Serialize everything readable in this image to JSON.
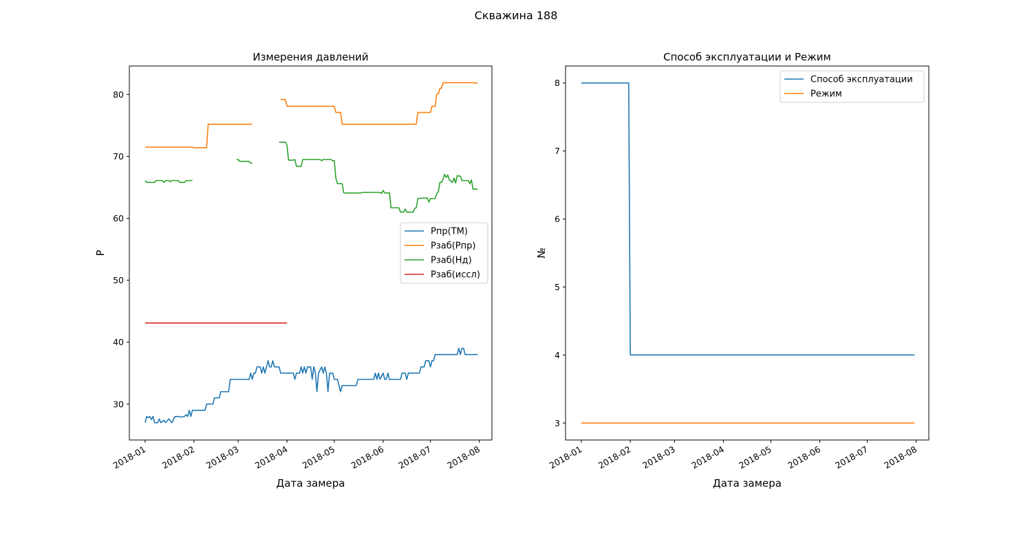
{
  "figure": {
    "suptitle": "Скважина 188"
  },
  "colors": {
    "blue": "#1f77b4",
    "orange": "#ff7f0e",
    "green": "#2ca02c",
    "red": "#d62728"
  },
  "chart_data": [
    {
      "type": "line",
      "title": "Измерения давлений",
      "xlabel": "Дата замера",
      "ylabel": "P",
      "xlim": [
        "2017-12-22",
        "2018-08-09"
      ],
      "ylim": [
        24.2,
        84.6
      ],
      "xticks": [
        "2018-01-01",
        "2018-02-01",
        "2018-03-01",
        "2018-04-01",
        "2018-05-01",
        "2018-06-01",
        "2018-07-01",
        "2018-08-01"
      ],
      "xtick_labels": [
        "2018-01",
        "2018-02",
        "2018-03",
        "2018-04",
        "2018-05",
        "2018-06",
        "2018-07",
        "2018-08"
      ],
      "yticks": [
        30,
        40,
        50,
        60,
        70,
        80
      ],
      "ytick_labels": [
        "30",
        "40",
        "50",
        "60",
        "70",
        "80"
      ],
      "legend": "center-right",
      "grid": false,
      "series": [
        {
          "name": "Pпр(ТМ)",
          "color": "#1f77b4",
          "points": [
            [
              "2018-01-01",
              27
            ],
            [
              "2018-01-02",
              28
            ],
            [
              "2018-01-03",
              27.8
            ],
            [
              "2018-01-04",
              28
            ],
            [
              "2018-01-05",
              27.5
            ],
            [
              "2018-01-06",
              28
            ],
            [
              "2018-01-07",
              27
            ],
            [
              "2018-01-09",
              27
            ],
            [
              "2018-01-10",
              27.6
            ],
            [
              "2018-01-11",
              27
            ],
            [
              "2018-01-13",
              27.4
            ],
            [
              "2018-01-14",
              27
            ],
            [
              "2018-01-16",
              27.6
            ],
            [
              "2018-01-17",
              27.3
            ],
            [
              "2018-01-18",
              27
            ],
            [
              "2018-01-20",
              28
            ],
            [
              "2018-01-22",
              28
            ],
            [
              "2018-01-24",
              27.9
            ],
            [
              "2018-01-26",
              28
            ],
            [
              "2018-01-27",
              28.3
            ],
            [
              "2018-01-28",
              28
            ],
            [
              "2018-01-29",
              29
            ],
            [
              "2018-01-30",
              28
            ],
            [
              "2018-01-31",
              29
            ],
            [
              "2018-02-01",
              29
            ],
            [
              "2018-02-08",
              29
            ],
            [
              "2018-02-09",
              30
            ],
            [
              "2018-02-13",
              30
            ],
            [
              "2018-02-14",
              31
            ],
            [
              "2018-02-17",
              31
            ],
            [
              "2018-02-18",
              32
            ],
            [
              "2018-02-23",
              32
            ],
            [
              "2018-02-24",
              34
            ],
            [
              "2018-03-08",
              34
            ],
            [
              "2018-03-09",
              35
            ],
            [
              "2018-03-10",
              34
            ],
            [
              "2018-03-11",
              35
            ],
            [
              "2018-03-12",
              35
            ],
            [
              "2018-03-13",
              36
            ],
            [
              "2018-03-15",
              36
            ],
            [
              "2018-03-16",
              35
            ],
            [
              "2018-03-17",
              36
            ],
            [
              "2018-03-18",
              35
            ],
            [
              "2018-03-19",
              36
            ],
            [
              "2018-03-20",
              37
            ],
            [
              "2018-03-21",
              36
            ],
            [
              "2018-03-22",
              36
            ],
            [
              "2018-03-23",
              37
            ],
            [
              "2018-03-24",
              36
            ],
            [
              "2018-03-27",
              36
            ],
            [
              "2018-03-28",
              35
            ],
            [
              "2018-04-05",
              35
            ],
            [
              "2018-04-06",
              34
            ],
            [
              "2018-04-07",
              35
            ],
            [
              "2018-04-09",
              35
            ],
            [
              "2018-04-10",
              36
            ],
            [
              "2018-04-11",
              35
            ],
            [
              "2018-04-12",
              36
            ],
            [
              "2018-04-13",
              35
            ],
            [
              "2018-04-14",
              36
            ],
            [
              "2018-04-16",
              36
            ],
            [
              "2018-04-17",
              34
            ],
            [
              "2018-04-18",
              36
            ],
            [
              "2018-04-19",
              35
            ],
            [
              "2018-04-20",
              32
            ],
            [
              "2018-04-21",
              35
            ],
            [
              "2018-04-22",
              35.5
            ],
            [
              "2018-04-23",
              36
            ],
            [
              "2018-04-24",
              35
            ],
            [
              "2018-04-25",
              36
            ],
            [
              "2018-04-26",
              35
            ],
            [
              "2018-04-27",
              32
            ],
            [
              "2018-04-28",
              35
            ],
            [
              "2018-04-30",
              35
            ],
            [
              "2018-05-01",
              34
            ],
            [
              "2018-05-03",
              34
            ],
            [
              "2018-05-04",
              33
            ],
            [
              "2018-05-05",
              32
            ],
            [
              "2018-05-06",
              33
            ],
            [
              "2018-05-15",
              33
            ],
            [
              "2018-05-16",
              34
            ],
            [
              "2018-05-26",
              34
            ],
            [
              "2018-05-27",
              35
            ],
            [
              "2018-05-28",
              34
            ],
            [
              "2018-05-29",
              35
            ],
            [
              "2018-05-30",
              34
            ],
            [
              "2018-06-01",
              35
            ],
            [
              "2018-06-02",
              34
            ],
            [
              "2018-06-03",
              34
            ],
            [
              "2018-06-04",
              35
            ],
            [
              "2018-06-05",
              34
            ],
            [
              "2018-06-12",
              34
            ],
            [
              "2018-06-13",
              35
            ],
            [
              "2018-06-15",
              35
            ],
            [
              "2018-06-16",
              34
            ],
            [
              "2018-06-17",
              35
            ],
            [
              "2018-06-24",
              35
            ],
            [
              "2018-06-25",
              36
            ],
            [
              "2018-06-27",
              36
            ],
            [
              "2018-06-28",
              37
            ],
            [
              "2018-06-30",
              37
            ],
            [
              "2018-07-01",
              36
            ],
            [
              "2018-07-02",
              37
            ],
            [
              "2018-07-03",
              37
            ],
            [
              "2018-07-04",
              38
            ],
            [
              "2018-07-18",
              38
            ],
            [
              "2018-07-19",
              39
            ],
            [
              "2018-07-20",
              38
            ],
            [
              "2018-07-21",
              39
            ],
            [
              "2018-07-22",
              39
            ],
            [
              "2018-07-23",
              38
            ],
            [
              "2018-07-31",
              38
            ]
          ]
        },
        {
          "name": "Pзаб(Pпр)",
          "color": "#ff7f0e",
          "points": [
            [
              "2018-01-01",
              71.5
            ],
            [
              "2018-01-31",
              71.5
            ],
            [
              "2018-02-01",
              71.4
            ],
            [
              "2018-02-09",
              71.4
            ],
            [
              "2018-02-10",
              75.2
            ],
            [
              "2018-03-10",
              75.2
            ],
            null,
            [
              "2018-03-28",
              79.2
            ],
            [
              "2018-03-31",
              79.2
            ],
            [
              "2018-04-01",
              78.1
            ],
            [
              "2018-05-01",
              78.1
            ],
            [
              "2018-05-02",
              77.1
            ],
            [
              "2018-05-05",
              77.1
            ],
            [
              "2018-05-06",
              75.2
            ],
            [
              "2018-06-22",
              75.2
            ],
            [
              "2018-06-23",
              77.1
            ],
            [
              "2018-07-01",
              77.1
            ],
            [
              "2018-07-02",
              78.1
            ],
            [
              "2018-07-04",
              78.1
            ],
            [
              "2018-07-05",
              80.1
            ],
            [
              "2018-07-06",
              80.1
            ],
            [
              "2018-07-07",
              81.0
            ],
            [
              "2018-07-08",
              81.0
            ],
            [
              "2018-07-09",
              81.9
            ],
            [
              "2018-07-28",
              81.9
            ],
            [
              "2018-07-31",
              81.8
            ]
          ]
        },
        {
          "name": "Pзаб(Нд)",
          "color": "#2ca02c",
          "points": [
            [
              "2018-01-01",
              66.1
            ],
            [
              "2018-01-02",
              65.8
            ],
            [
              "2018-01-07",
              65.8
            ],
            [
              "2018-01-08",
              66.1
            ],
            [
              "2018-01-12",
              66.1
            ],
            [
              "2018-01-13",
              65.8
            ],
            [
              "2018-01-14",
              66.1
            ],
            [
              "2018-01-16",
              66.1
            ],
            [
              "2018-01-17",
              65.9
            ],
            [
              "2018-01-18",
              66.1
            ],
            [
              "2018-01-22",
              66.1
            ],
            [
              "2018-01-23",
              65.8
            ],
            [
              "2018-01-26",
              65.8
            ],
            [
              "2018-01-27",
              66.1
            ],
            [
              "2018-01-31",
              66.1
            ],
            null,
            [
              "2018-02-28",
              69.5
            ],
            [
              "2018-03-01",
              69.5
            ],
            [
              "2018-03-02",
              69.2
            ],
            [
              "2018-03-08",
              69.2
            ],
            [
              "2018-03-09",
              68.9
            ],
            [
              "2018-03-10",
              68.9
            ],
            null,
            [
              "2018-03-27",
              72.3
            ],
            [
              "2018-03-31",
              72.3
            ],
            [
              "2018-04-01",
              71.8
            ],
            [
              "2018-04-02",
              69.4
            ],
            [
              "2018-04-05",
              69.4
            ],
            [
              "2018-04-06",
              69.5
            ],
            [
              "2018-04-07",
              68.4
            ],
            [
              "2018-04-10",
              68.4
            ],
            [
              "2018-04-11",
              69.5
            ],
            [
              "2018-04-22",
              69.5
            ],
            [
              "2018-04-23",
              69.3
            ],
            [
              "2018-04-24",
              69.5
            ],
            [
              "2018-04-29",
              69.5
            ],
            [
              "2018-04-30",
              69.3
            ],
            [
              "2018-05-01",
              69.3
            ],
            [
              "2018-05-02",
              66.5
            ],
            [
              "2018-05-03",
              65.6
            ],
            [
              "2018-05-06",
              65.6
            ],
            [
              "2018-05-07",
              64.1
            ],
            [
              "2018-05-18",
              64.1
            ],
            [
              "2018-05-19",
              64.2
            ],
            [
              "2018-05-30",
              64.2
            ],
            [
              "2018-05-31",
              64.0
            ],
            [
              "2018-06-01",
              64.5
            ],
            [
              "2018-06-02",
              64.1
            ],
            [
              "2018-06-05",
              64.1
            ],
            [
              "2018-06-06",
              61.7
            ],
            [
              "2018-06-11",
              61.7
            ],
            [
              "2018-06-12",
              61.0
            ],
            [
              "2018-06-14",
              61.0
            ],
            [
              "2018-06-15",
              61.5
            ],
            [
              "2018-06-16",
              61.0
            ],
            [
              "2018-06-20",
              61.0
            ],
            [
              "2018-06-21",
              61.6
            ],
            [
              "2018-06-22",
              61.7
            ],
            [
              "2018-06-23",
              63.2
            ],
            [
              "2018-06-29",
              63.3
            ],
            [
              "2018-06-30",
              62.6
            ],
            [
              "2018-07-01",
              63.2
            ],
            [
              "2018-07-04",
              63.2
            ],
            [
              "2018-07-05",
              64.0
            ],
            [
              "2018-07-06",
              64.3
            ],
            [
              "2018-07-07",
              65.8
            ],
            [
              "2018-07-08",
              65.8
            ],
            [
              "2018-07-09",
              66.3
            ],
            [
              "2018-07-10",
              67.1
            ],
            [
              "2018-07-11",
              66.6
            ],
            [
              "2018-07-12",
              67.0
            ],
            [
              "2018-07-13",
              66.2
            ],
            [
              "2018-07-14",
              66.0
            ],
            [
              "2018-07-15",
              65.8
            ],
            [
              "2018-07-16",
              66.5
            ],
            [
              "2018-07-17",
              65.7
            ],
            [
              "2018-07-18",
              66.9
            ],
            [
              "2018-07-20",
              66.8
            ],
            [
              "2018-07-21",
              66.1
            ],
            [
              "2018-07-25",
              66.1
            ],
            [
              "2018-07-26",
              65.6
            ],
            [
              "2018-07-27",
              66.2
            ],
            [
              "2018-07-28",
              64.7
            ],
            [
              "2018-07-31",
              64.7
            ]
          ]
        },
        {
          "name": "Pзаб(иссл)",
          "color": "#d62728",
          "points": [
            [
              "2018-01-01",
              43.1
            ],
            [
              "2018-04-01",
              43.1
            ]
          ]
        }
      ]
    },
    {
      "type": "line",
      "title": "Способ эксплуатации и Режим",
      "xlabel": "Дата замера",
      "ylabel": "№",
      "xlim": [
        "2017-12-22",
        "2018-08-09"
      ],
      "ylim": [
        2.75,
        8.25
      ],
      "xticks": [
        "2018-01-01",
        "2018-02-01",
        "2018-03-01",
        "2018-04-01",
        "2018-05-01",
        "2018-06-01",
        "2018-07-01",
        "2018-08-01"
      ],
      "xtick_labels": [
        "2018-01",
        "2018-02",
        "2018-03",
        "2018-04",
        "2018-05",
        "2018-06",
        "2018-07",
        "2018-08"
      ],
      "yticks": [
        3,
        4,
        5,
        6,
        7,
        8
      ],
      "ytick_labels": [
        "3",
        "4",
        "5",
        "6",
        "7",
        "8"
      ],
      "legend": "upper-right",
      "grid": false,
      "series": [
        {
          "name": "Способ эксплуатации",
          "color": "#1f77b4",
          "points": [
            [
              "2018-01-01",
              8
            ],
            [
              "2018-01-31",
              8
            ],
            [
              "2018-02-01",
              4
            ],
            [
              "2018-07-31",
              4
            ]
          ]
        },
        {
          "name": "Режим",
          "color": "#ff7f0e",
          "points": [
            [
              "2018-01-01",
              3
            ],
            [
              "2018-07-31",
              3
            ]
          ]
        }
      ]
    }
  ]
}
